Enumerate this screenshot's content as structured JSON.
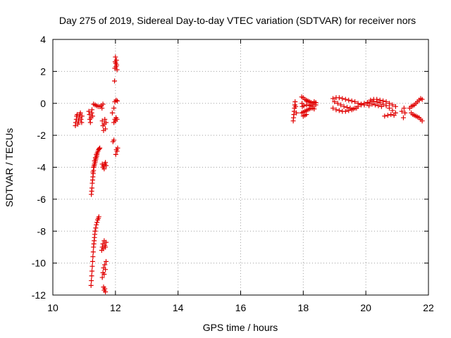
{
  "chart_data": {
    "type": "scatter",
    "title": "Day 275 of 2019, Sidereal Day-to-day VTEC variation (SDTVAR) for receiver nors",
    "xlabel": "GPS time / hours",
    "ylabel": "SDTVAR / TECUs",
    "xlim": [
      10,
      22
    ],
    "ylim": [
      -12,
      4
    ],
    "xticks": [
      "10",
      "12",
      "14",
      "16",
      "18",
      "20",
      "22"
    ],
    "yticks": [
      "4",
      "2",
      "0",
      "-2",
      "-4",
      "-6",
      "-8",
      "-10",
      "-12"
    ],
    "grid": true,
    "marker": "plus",
    "color": "#e00000",
    "series": [
      {
        "points": [
          [
            10.72,
            -1.4
          ],
          [
            10.73,
            -1.2
          ],
          [
            10.75,
            -1.0
          ],
          [
            10.76,
            -0.8
          ],
          [
            10.78,
            -0.7
          ],
          [
            10.8,
            -1.3
          ],
          [
            10.82,
            -1.1
          ],
          [
            10.84,
            -0.9
          ],
          [
            10.86,
            -0.7
          ],
          [
            10.88,
            -0.6
          ],
          [
            10.9,
            -1.0
          ],
          [
            10.92,
            -1.2
          ],
          [
            10.93,
            -0.8
          ],
          [
            11.15,
            -0.5
          ],
          [
            11.17,
            -0.7
          ],
          [
            11.18,
            -1.0
          ],
          [
            11.2,
            -1.2
          ],
          [
            11.22,
            -0.9
          ],
          [
            11.24,
            -0.6
          ],
          [
            11.25,
            -0.4
          ],
          [
            11.27,
            -0.8
          ],
          [
            11.23,
            -5.7
          ],
          [
            11.24,
            -5.5
          ],
          [
            11.25,
            -5.3
          ],
          [
            11.26,
            -5.0
          ],
          [
            11.27,
            -4.8
          ],
          [
            11.28,
            -4.6
          ],
          [
            11.29,
            -4.4
          ],
          [
            11.3,
            -4.2
          ],
          [
            11.31,
            -4.0
          ],
          [
            11.32,
            -3.9
          ],
          [
            11.33,
            -3.8
          ],
          [
            11.35,
            -3.7
          ],
          [
            11.36,
            -3.6
          ],
          [
            11.37,
            -3.5
          ],
          [
            11.38,
            -3.4
          ],
          [
            11.4,
            -3.3
          ],
          [
            11.41,
            -3.2
          ],
          [
            11.42,
            -3.1
          ],
          [
            11.44,
            -3.0
          ],
          [
            11.46,
            -2.9
          ],
          [
            11.48,
            -2.85
          ],
          [
            11.5,
            -2.8
          ],
          [
            11.28,
            -4.3
          ],
          [
            11.3,
            -4.0
          ],
          [
            11.33,
            -3.6
          ],
          [
            11.36,
            -3.4
          ],
          [
            11.39,
            -3.2
          ],
          [
            11.22,
            -11.4
          ],
          [
            11.23,
            -11.1
          ],
          [
            11.24,
            -10.8
          ],
          [
            11.25,
            -10.5
          ],
          [
            11.26,
            -10.2
          ],
          [
            11.27,
            -9.9
          ],
          [
            11.28,
            -9.6
          ],
          [
            11.29,
            -9.3
          ],
          [
            11.3,
            -9.0
          ],
          [
            11.31,
            -8.8
          ],
          [
            11.32,
            -8.6
          ],
          [
            11.33,
            -8.4
          ],
          [
            11.34,
            -8.2
          ],
          [
            11.35,
            -8.0
          ],
          [
            11.37,
            -7.8
          ],
          [
            11.39,
            -7.6
          ],
          [
            11.41,
            -7.45
          ],
          [
            11.43,
            -7.3
          ],
          [
            11.45,
            -7.2
          ],
          [
            11.47,
            -7.1
          ],
          [
            11.3,
            -0.05
          ],
          [
            11.35,
            -0.1
          ],
          [
            11.4,
            -0.15
          ],
          [
            11.45,
            -0.2
          ],
          [
            11.5,
            -0.2
          ],
          [
            11.55,
            -0.15
          ],
          [
            11.6,
            -0.05
          ],
          [
            11.57,
            -0.3
          ],
          [
            11.58,
            -1.1
          ],
          [
            11.6,
            -1.4
          ],
          [
            11.62,
            -1.7
          ],
          [
            11.64,
            -1.3
          ],
          [
            11.66,
            -1.0
          ],
          [
            11.68,
            -1.6
          ],
          [
            11.7,
            -1.2
          ],
          [
            11.58,
            -3.8
          ],
          [
            11.6,
            -4.0
          ],
          [
            11.62,
            -3.9
          ],
          [
            11.64,
            -4.1
          ],
          [
            11.66,
            -3.8
          ],
          [
            11.68,
            -3.7
          ],
          [
            11.7,
            -3.9
          ],
          [
            11.56,
            -9.2
          ],
          [
            11.58,
            -9.0
          ],
          [
            11.6,
            -8.8
          ],
          [
            11.62,
            -9.1
          ],
          [
            11.64,
            -8.6
          ],
          [
            11.66,
            -8.9
          ],
          [
            11.68,
            -9.0
          ],
          [
            11.7,
            -8.7
          ],
          [
            11.58,
            -10.9
          ],
          [
            11.6,
            -10.6
          ],
          [
            11.62,
            -10.3
          ],
          [
            11.64,
            -10.7
          ],
          [
            11.66,
            -10.1
          ],
          [
            11.68,
            -10.4
          ],
          [
            11.7,
            -9.9
          ],
          [
            11.62,
            -11.5
          ],
          [
            11.64,
            -11.7
          ],
          [
            11.66,
            -11.6
          ],
          [
            11.68,
            -11.8
          ],
          [
            11.9,
            -0.6
          ],
          [
            11.95,
            -0.3
          ],
          [
            11.97,
            1.4
          ],
          [
            11.98,
            2.2
          ],
          [
            11.99,
            2.6
          ],
          [
            12.0,
            2.9
          ],
          [
            12.01,
            2.5
          ],
          [
            12.02,
            2.3
          ],
          [
            12.03,
            2.7
          ],
          [
            12.04,
            2.4
          ],
          [
            12.05,
            2.1
          ],
          [
            11.98,
            0.1
          ],
          [
            12.02,
            0.2
          ],
          [
            12.06,
            0.15
          ],
          [
            11.95,
            -1.2
          ],
          [
            11.98,
            -1.0
          ],
          [
            12.0,
            -1.1
          ],
          [
            12.02,
            -0.9
          ],
          [
            12.05,
            -1.0
          ],
          [
            11.92,
            -2.4
          ],
          [
            11.95,
            -2.3
          ],
          [
            12.01,
            -3.2
          ],
          [
            12.03,
            -2.9
          ],
          [
            12.05,
            -3.0
          ],
          [
            12.07,
            -2.8
          ],
          [
            17.68,
            -1.1
          ],
          [
            17.69,
            -0.9
          ],
          [
            17.7,
            -0.7
          ],
          [
            17.71,
            -0.5
          ],
          [
            17.72,
            -0.3
          ],
          [
            17.73,
            -0.1
          ],
          [
            17.74,
            0.1
          ],
          [
            17.76,
            -0.2
          ],
          [
            17.78,
            -0.6
          ],
          [
            17.95,
            0.4
          ],
          [
            18.0,
            0.35
          ],
          [
            18.05,
            0.25
          ],
          [
            18.1,
            0.2
          ],
          [
            18.15,
            0.15
          ],
          [
            18.2,
            0.1
          ],
          [
            18.25,
            0.05
          ],
          [
            18.3,
            0.0
          ],
          [
            18.35,
            0.0
          ],
          [
            17.95,
            -0.6
          ],
          [
            18.0,
            -0.55
          ],
          [
            18.05,
            -0.5
          ],
          [
            18.1,
            -0.45
          ],
          [
            18.15,
            -0.4
          ],
          [
            18.2,
            -0.35
          ],
          [
            18.25,
            -0.3
          ],
          [
            18.3,
            -0.3
          ],
          [
            18.35,
            -0.35
          ],
          [
            17.97,
            -0.2
          ],
          [
            18.02,
            -0.15
          ],
          [
            18.1,
            -0.1
          ],
          [
            18.2,
            -0.15
          ],
          [
            18.3,
            -0.2
          ],
          [
            17.96,
            0.0
          ],
          [
            18.0,
            -0.8
          ],
          [
            18.05,
            -0.75
          ],
          [
            18.1,
            -0.7
          ],
          [
            18.15,
            0.1
          ],
          [
            18.25,
            -0.1
          ],
          [
            18.35,
            0.1
          ],
          [
            18.4,
            -0.1
          ],
          [
            18.4,
            0.05
          ],
          [
            18.95,
            -0.3
          ],
          [
            19.05,
            -0.4
          ],
          [
            19.15,
            -0.45
          ],
          [
            19.25,
            -0.5
          ],
          [
            19.35,
            -0.5
          ],
          [
            19.45,
            -0.45
          ],
          [
            19.55,
            -0.4
          ],
          [
            19.65,
            -0.3
          ],
          [
            19.75,
            -0.2
          ],
          [
            19.85,
            -0.1
          ],
          [
            19.95,
            0.0
          ],
          [
            20.05,
            0.05
          ],
          [
            20.15,
            0.1
          ],
          [
            20.25,
            0.12
          ],
          [
            20.35,
            0.1
          ],
          [
            20.45,
            0.05
          ],
          [
            20.55,
            -0.05
          ],
          [
            20.65,
            -0.15
          ],
          [
            20.75,
            -0.3
          ],
          [
            20.85,
            -0.45
          ],
          [
            20.95,
            -0.6
          ],
          [
            18.95,
            0.3
          ],
          [
            19.05,
            0.35
          ],
          [
            19.15,
            0.35
          ],
          [
            19.25,
            0.3
          ],
          [
            19.35,
            0.25
          ],
          [
            19.45,
            0.2
          ],
          [
            19.55,
            0.15
          ],
          [
            19.65,
            0.1
          ],
          [
            19.75,
            0.0
          ],
          [
            19.85,
            -0.05
          ],
          [
            19.95,
            -0.1
          ],
          [
            20.05,
            0.0
          ],
          [
            20.15,
            0.2
          ],
          [
            20.25,
            0.25
          ],
          [
            20.35,
            0.25
          ],
          [
            20.45,
            0.2
          ],
          [
            20.55,
            0.15
          ],
          [
            20.65,
            0.1
          ],
          [
            20.75,
            0.0
          ],
          [
            20.85,
            -0.1
          ],
          [
            20.95,
            -0.2
          ],
          [
            19.0,
            0.1
          ],
          [
            19.1,
            0.0
          ],
          [
            19.2,
            -0.1
          ],
          [
            19.3,
            -0.2
          ],
          [
            19.4,
            -0.25
          ],
          [
            19.5,
            -0.3
          ],
          [
            19.6,
            -0.35
          ],
          [
            19.7,
            -0.3
          ],
          [
            20.1,
            -0.15
          ],
          [
            20.2,
            -0.05
          ],
          [
            20.3,
            -0.1
          ],
          [
            20.4,
            -0.15
          ],
          [
            20.5,
            -0.2
          ],
          [
            20.6,
            -0.8
          ],
          [
            20.7,
            -0.75
          ],
          [
            20.8,
            -0.7
          ],
          [
            20.9,
            -0.75
          ],
          [
            21.15,
            -0.5
          ],
          [
            21.2,
            -0.9
          ],
          [
            21.22,
            -0.3
          ],
          [
            21.25,
            -0.6
          ],
          [
            21.4,
            -0.3
          ],
          [
            21.45,
            -0.2
          ],
          [
            21.5,
            -0.15
          ],
          [
            21.55,
            -0.1
          ],
          [
            21.6,
            0.0
          ],
          [
            21.65,
            0.1
          ],
          [
            21.7,
            0.2
          ],
          [
            21.75,
            0.3
          ],
          [
            21.8,
            0.25
          ],
          [
            21.45,
            -0.6
          ],
          [
            21.5,
            -0.7
          ],
          [
            21.55,
            -0.75
          ],
          [
            21.6,
            -0.8
          ],
          [
            21.65,
            -0.85
          ],
          [
            21.7,
            -0.9
          ],
          [
            21.75,
            -1.0
          ],
          [
            21.8,
            -1.1
          ]
        ]
      }
    ]
  }
}
